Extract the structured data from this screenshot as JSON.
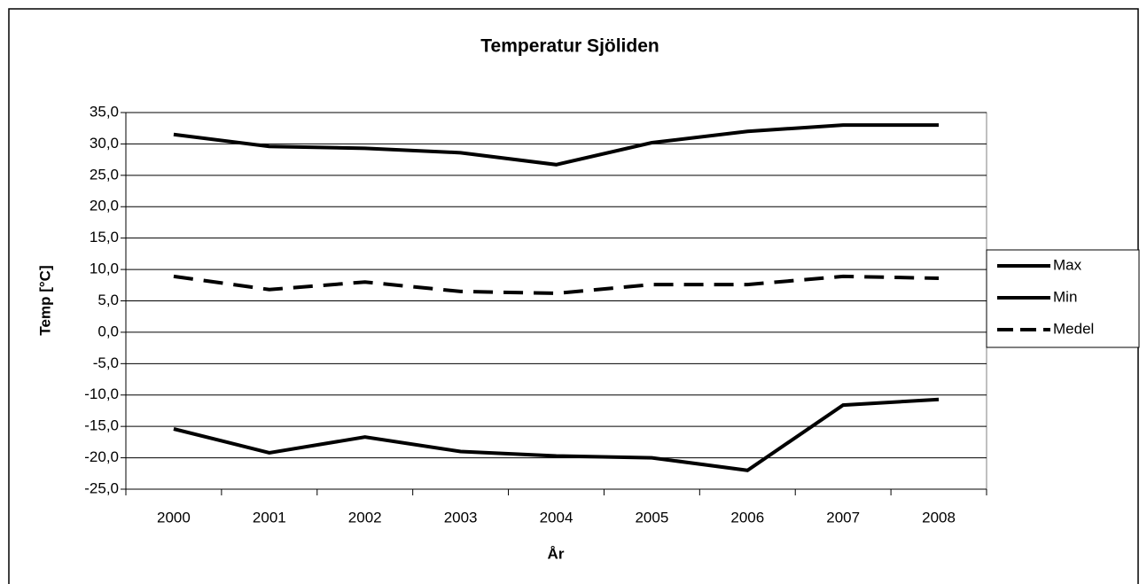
{
  "chart_data": {
    "type": "line",
    "title": "Temperatur Sjöliden",
    "x_label": "År",
    "y_label": "Temp [°C]",
    "categories": [
      "2000",
      "2001",
      "2002",
      "2003",
      "2004",
      "2005",
      "2006",
      "2007",
      "2008"
    ],
    "series": [
      {
        "name": "Max",
        "color": "#000000",
        "line_style": "solid",
        "values": [
          31.5,
          29.6,
          29.3,
          28.6,
          26.7,
          30.2,
          32.0,
          33.0,
          33.0
        ]
      },
      {
        "name": "Min",
        "color": "#000000",
        "line_style": "solid",
        "values": [
          -15.4,
          -19.2,
          -16.7,
          -19.0,
          -19.7,
          -20.0,
          -22.0,
          -11.6,
          -10.7
        ]
      },
      {
        "name": "Medel",
        "color": "#000000",
        "line_style": "dashed",
        "values": [
          8.9,
          6.8,
          8.0,
          6.5,
          6.2,
          7.6,
          7.6,
          8.9,
          8.6
        ]
      }
    ],
    "ylim": [
      -25,
      35
    ],
    "yticks": [
      {
        "value": -25,
        "label": "-25,0"
      },
      {
        "value": -20,
        "label": "-20,0"
      },
      {
        "value": -15,
        "label": "-15,0"
      },
      {
        "value": -10,
        "label": "-10,0"
      },
      {
        "value": -5,
        "label": "-5,0"
      },
      {
        "value": 0,
        "label": "0,0"
      },
      {
        "value": 5,
        "label": "5,0"
      },
      {
        "value": 10,
        "label": "10,0"
      },
      {
        "value": 15,
        "label": "15,0"
      },
      {
        "value": 20,
        "label": "20,0"
      },
      {
        "value": 25,
        "label": "25,0"
      },
      {
        "value": 30,
        "label": "30,0"
      },
      {
        "value": 35,
        "label": "35,0"
      }
    ],
    "grid": true,
    "legend": "right"
  }
}
